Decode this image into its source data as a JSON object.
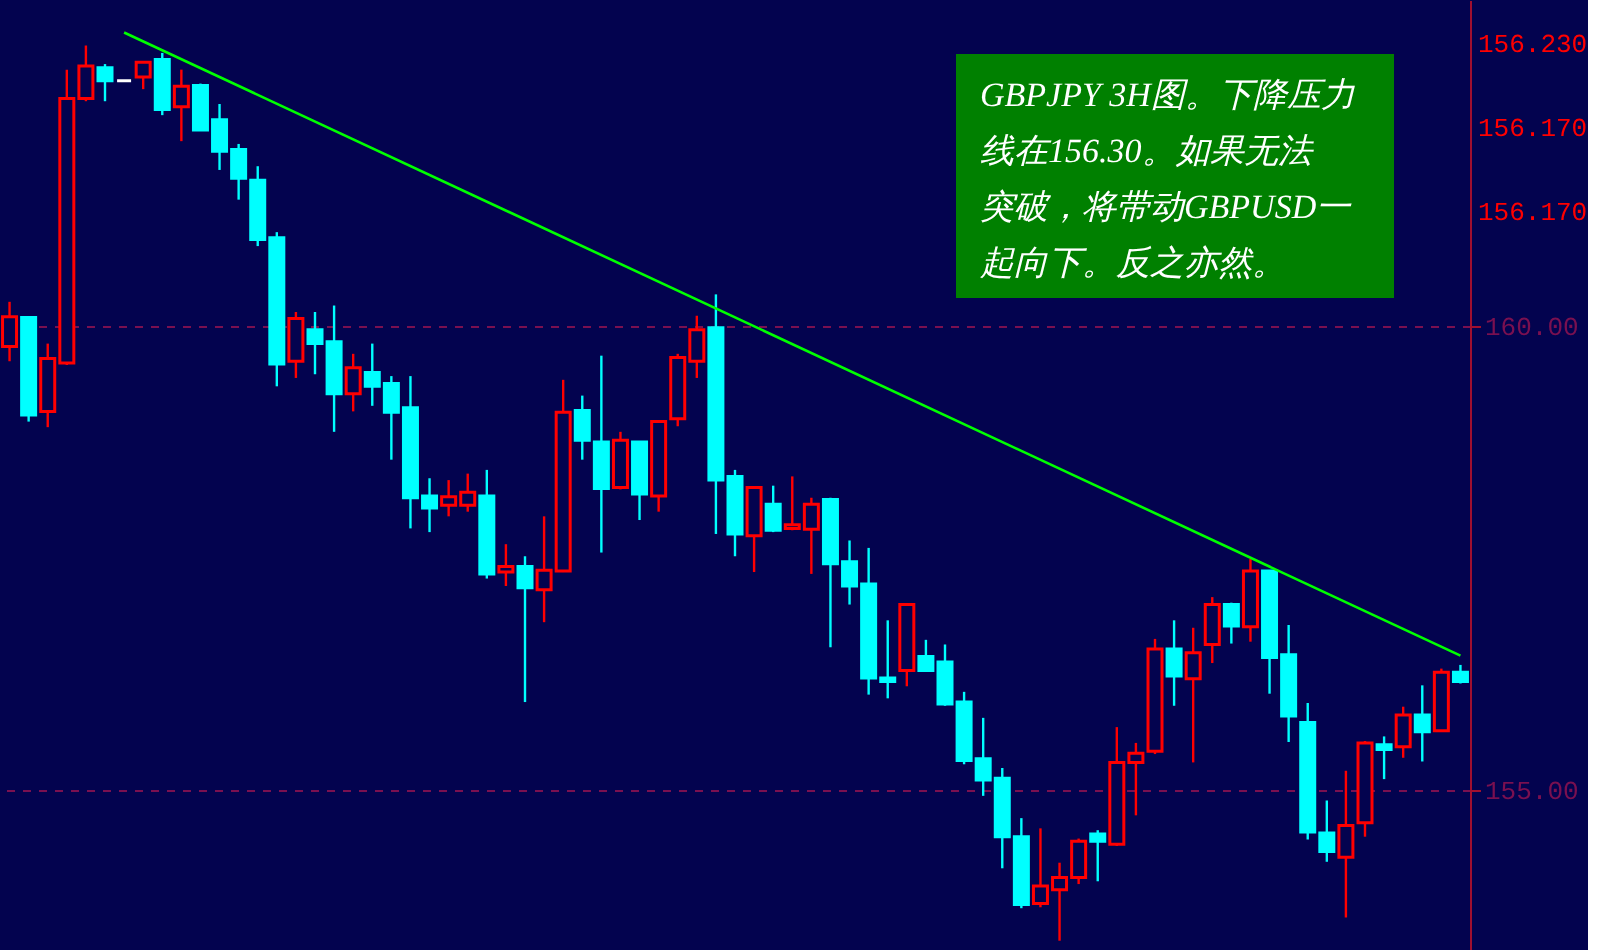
{
  "chart_data": {
    "type": "candlestick",
    "categories": [
      null,
      null,
      null,
      null,
      null,
      null,
      null,
      null,
      null,
      null,
      null,
      null,
      null,
      null,
      null,
      null,
      null,
      null,
      null,
      null,
      null,
      null,
      null,
      null,
      null,
      null,
      null,
      null,
      null,
      null,
      null,
      null,
      null,
      null,
      null,
      null,
      null,
      null,
      null,
      null,
      null,
      null,
      null,
      null,
      null,
      null,
      null,
      null,
      null,
      null,
      null,
      null,
      null,
      null,
      null,
      null,
      null,
      null,
      null,
      null,
      null,
      null,
      null,
      null,
      null,
      null,
      null,
      null,
      null,
      null,
      null,
      null,
      null,
      null,
      null,
      null,
      null
    ],
    "ohlc": [
      [
        159.78,
        160.26,
        159.62,
        160.1
      ],
      [
        160.09,
        160.09,
        158.97,
        159.04
      ],
      [
        159.08,
        159.81,
        158.91,
        159.65
      ],
      [
        159.6,
        162.76,
        159.58,
        162.45
      ],
      [
        162.45,
        163.02,
        162.42,
        162.8
      ],
      [
        162.78,
        162.82,
        162.42,
        162.64
      ],
      [
        162.64,
        162.64,
        162.64,
        162.64
      ],
      [
        162.68,
        162.85,
        162.55,
        162.84
      ],
      [
        162.87,
        162.94,
        162.27,
        162.33
      ],
      [
        162.36,
        162.76,
        161.99,
        162.58
      ],
      [
        162.59,
        162.61,
        162.1,
        162.11
      ],
      [
        162.22,
        162.39,
        161.68,
        161.88
      ],
      [
        161.9,
        161.96,
        161.36,
        161.59
      ],
      [
        161.57,
        161.72,
        160.86,
        160.93
      ],
      [
        160.95,
        161.01,
        159.35,
        159.59
      ],
      [
        159.62,
        160.15,
        159.44,
        160.08
      ],
      [
        159.96,
        160.15,
        159.48,
        159.81
      ],
      [
        159.83,
        160.22,
        158.86,
        159.27
      ],
      [
        159.27,
        159.7,
        159.08,
        159.55
      ],
      [
        159.5,
        159.81,
        159.14,
        159.35
      ],
      [
        159.38,
        159.46,
        158.56,
        159.07
      ],
      [
        159.12,
        159.46,
        157.82,
        158.15
      ],
      [
        158.17,
        158.36,
        157.78,
        158.04
      ],
      [
        158.07,
        158.34,
        157.95,
        158.16
      ],
      [
        158.07,
        158.41,
        158.0,
        158.21
      ],
      [
        158.17,
        158.45,
        157.28,
        157.33
      ],
      [
        157.35,
        157.65,
        157.2,
        157.41
      ],
      [
        157.41,
        157.52,
        155.95,
        157.18
      ],
      [
        157.16,
        157.95,
        156.81,
        157.37
      ],
      [
        157.36,
        159.42,
        157.35,
        159.07
      ],
      [
        159.09,
        159.25,
        158.56,
        158.77
      ],
      [
        158.75,
        159.68,
        157.56,
        158.25
      ],
      [
        158.26,
        158.86,
        158.24,
        158.77
      ],
      [
        158.75,
        158.75,
        157.91,
        158.19
      ],
      [
        158.17,
        158.97,
        158.0,
        158.97
      ],
      [
        159.0,
        159.7,
        158.92,
        159.66
      ],
      [
        159.62,
        160.11,
        159.44,
        159.96
      ],
      [
        159.98,
        160.34,
        157.76,
        158.34
      ],
      [
        158.38,
        158.45,
        157.52,
        157.76
      ],
      [
        157.74,
        158.27,
        157.35,
        158.26
      ],
      [
        158.08,
        158.28,
        157.78,
        157.8
      ],
      [
        157.82,
        158.38,
        157.8,
        157.86
      ],
      [
        157.81,
        158.15,
        157.33,
        158.08
      ],
      [
        158.13,
        158.15,
        156.54,
        157.44
      ],
      [
        157.46,
        157.69,
        157.0,
        157.2
      ],
      [
        157.22,
        157.61,
        156.03,
        156.21
      ],
      [
        156.21,
        156.83,
        155.99,
        156.17
      ],
      [
        156.29,
        157.0,
        156.12,
        157.0
      ],
      [
        156.44,
        156.62,
        156.29,
        156.29
      ],
      [
        156.38,
        156.57,
        155.91,
        155.93
      ],
      [
        155.95,
        156.06,
        155.28,
        155.32
      ],
      [
        155.34,
        155.78,
        154.94,
        155.11
      ],
      [
        155.13,
        155.24,
        154.16,
        154.5
      ],
      [
        154.5,
        154.7,
        153.73,
        153.77
      ],
      [
        153.78,
        154.59,
        153.74,
        153.97
      ],
      [
        153.93,
        154.22,
        153.38,
        154.06
      ],
      [
        154.06,
        154.48,
        153.99,
        154.45
      ],
      [
        154.53,
        154.57,
        154.02,
        154.45
      ],
      [
        154.42,
        155.68,
        154.4,
        155.3
      ],
      [
        155.3,
        155.51,
        154.73,
        155.4
      ],
      [
        155.42,
        156.63,
        155.39,
        156.52
      ],
      [
        156.52,
        156.83,
        155.91,
        156.23
      ],
      [
        156.2,
        156.75,
        155.3,
        156.48
      ],
      [
        156.57,
        157.08,
        156.37,
        157.0
      ],
      [
        157.0,
        157.02,
        156.58,
        156.77
      ],
      [
        156.76,
        157.49,
        156.6,
        157.36
      ],
      [
        157.36,
        157.37,
        156.04,
        156.43
      ],
      [
        156.46,
        156.78,
        155.52,
        155.8
      ],
      [
        155.73,
        155.94,
        154.47,
        154.55
      ],
      [
        154.54,
        154.89,
        154.23,
        154.34
      ],
      [
        154.28,
        155.21,
        153.63,
        154.62
      ],
      [
        154.65,
        155.53,
        154.5,
        155.51
      ],
      [
        155.49,
        155.58,
        155.12,
        155.44
      ],
      [
        155.47,
        155.9,
        155.35,
        155.81
      ],
      [
        155.81,
        156.13,
        155.31,
        155.63
      ],
      [
        155.64,
        156.31,
        155.63,
        156.27
      ],
      [
        156.27,
        156.35,
        156.15,
        156.17
      ]
    ],
    "colors": [
      "#ff0000",
      "#00ffff",
      "#ff0000",
      "#ff0000",
      "#ff0000",
      "#00ffff",
      "#ffffff",
      "#ff0000",
      "#00ffff",
      "#ff0000",
      "#00ffff",
      "#00ffff",
      "#00ffff",
      "#00ffff",
      "#00ffff",
      "#ff0000",
      "#00ffff",
      "#00ffff",
      "#ff0000",
      "#00ffff",
      "#00ffff",
      "#00ffff",
      "#00ffff",
      "#ff0000",
      "#ff0000",
      "#00ffff",
      "#ff0000",
      "#00ffff",
      "#ff0000",
      "#ff0000",
      "#00ffff",
      "#00ffff",
      "#ff0000",
      "#00ffff",
      "#ff0000",
      "#ff0000",
      "#ff0000",
      "#00ffff",
      "#00ffff",
      "#ff0000",
      "#00ffff",
      "#ff0000",
      "#ff0000",
      "#00ffff",
      "#00ffff",
      "#00ffff",
      "#00ffff",
      "#ff0000",
      "#00ffff",
      "#00ffff",
      "#00ffff",
      "#00ffff",
      "#00ffff",
      "#00ffff",
      "#ff0000",
      "#ff0000",
      "#ff0000",
      "#00ffff",
      "#ff0000",
      "#ff0000",
      "#ff0000",
      "#00ffff",
      "#ff0000",
      "#ff0000",
      "#00ffff",
      "#ff0000",
      "#00ffff",
      "#00ffff",
      "#00ffff",
      "#00ffff",
      "#ff0000",
      "#ff0000",
      "#00ffff",
      "#ff0000",
      "#00ffff",
      "#ff0000",
      "#00ffff"
    ],
    "series": [
      {
        "type": "line",
        "color": "#00ff00",
        "values": [
          null,
          null,
          null,
          null,
          null,
          null,
          163.16,
          null,
          null,
          null,
          null,
          null,
          null,
          null,
          null,
          null,
          null,
          null,
          null,
          null,
          null,
          null,
          null,
          null,
          null,
          null,
          null,
          null,
          null,
          null,
          null,
          null,
          null,
          null,
          null,
          null,
          null,
          null,
          null,
          null,
          null,
          null,
          null,
          null,
          null,
          null,
          null,
          null,
          null,
          null,
          null,
          null,
          null,
          null,
          null,
          null,
          null,
          null,
          null,
          null,
          null,
          null,
          null,
          null,
          null,
          null,
          null,
          null,
          null,
          null,
          null,
          null,
          null,
          null,
          null,
          null,
          156.45
        ]
      }
    ],
    "ylim": [
      153.28,
      163.51
    ],
    "yticks": [
      {
        "value": 160,
        "label": "160.00"
      },
      {
        "value": 155,
        "label": "155.00"
      }
    ],
    "grid": "y",
    "tick_labels": "y",
    "annotations": [
      "GBPJPY 3H图。下降压力线在156.30。如果无法突破，将带动GBPUSD一起向下。反之亦然。",
      "156.230",
      "156.170",
      "156.170"
    ]
  }
}
